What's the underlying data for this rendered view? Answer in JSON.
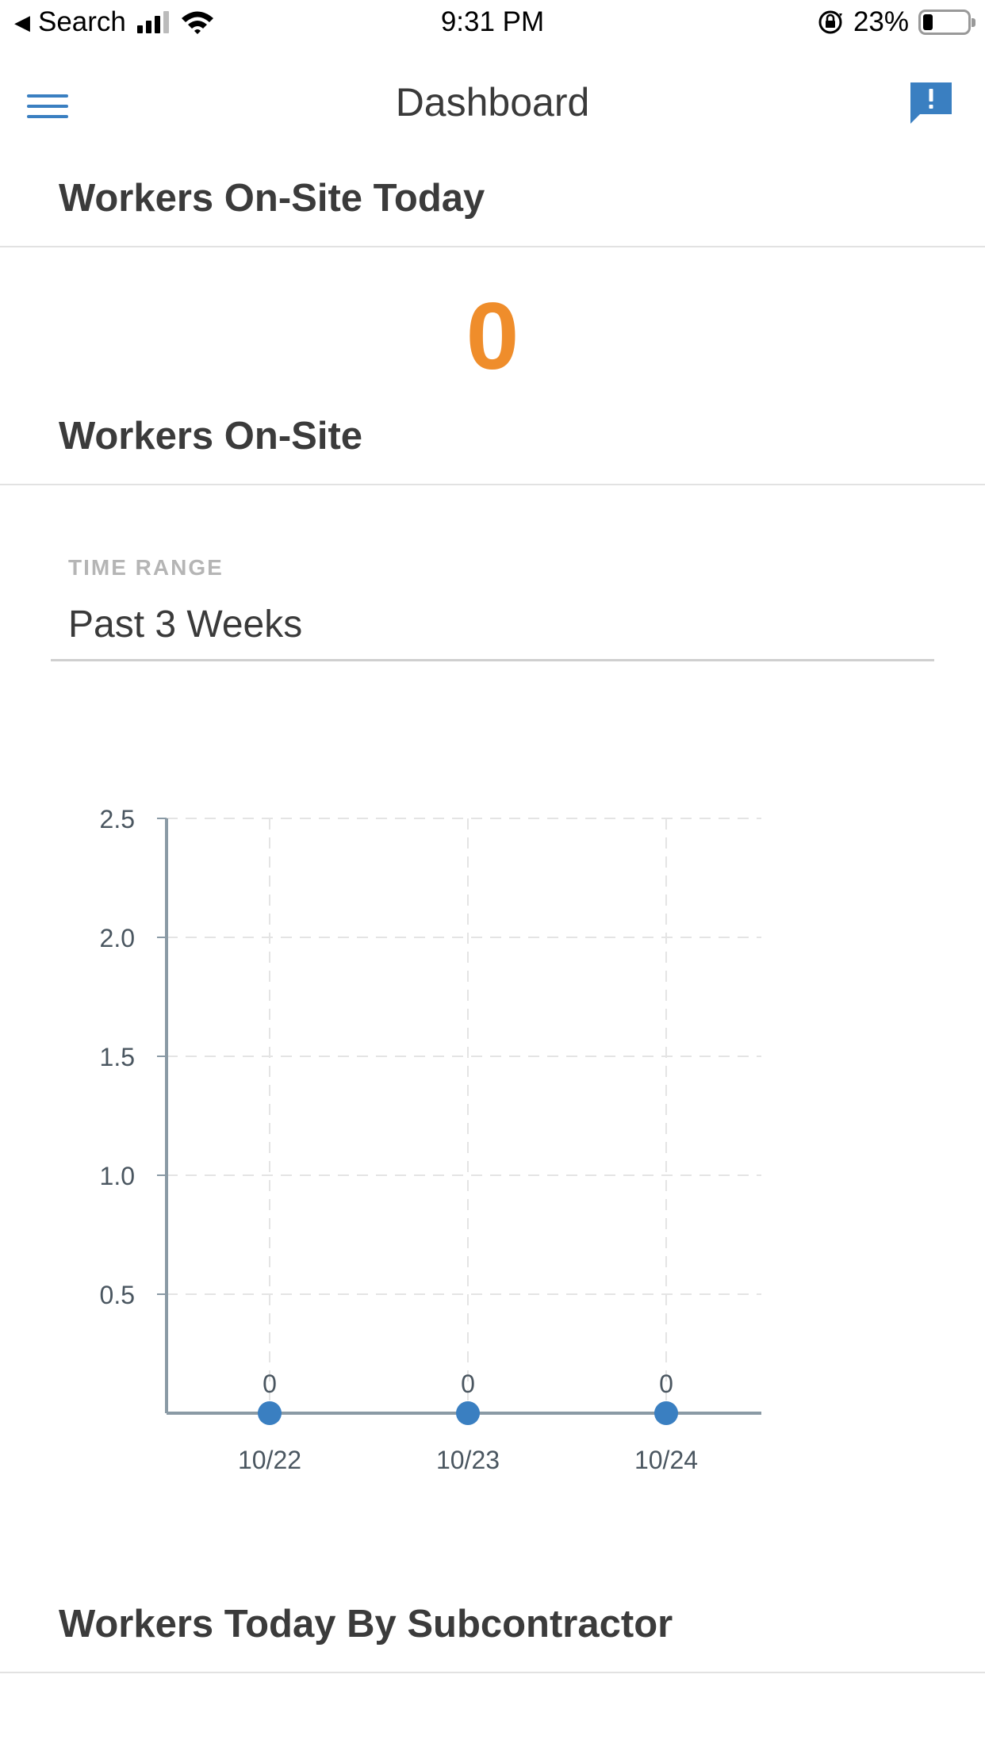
{
  "status_bar": {
    "back_label": "Search",
    "time": "9:31 PM",
    "battery_text": "23%",
    "battery_level": 0.23
  },
  "nav": {
    "title": "Dashboard",
    "menu_icon": "hamburger-menu-icon",
    "feedback_icon": "feedback-chat-icon",
    "accent_color": "#3a7fc1"
  },
  "workers_today": {
    "heading": "Workers On-Site Today",
    "count": "0",
    "count_color": "#ef8d2b"
  },
  "workers_onsite": {
    "heading": "Workers On-Site",
    "time_range_label": "TIME RANGE",
    "time_range_value": "Past 3 Weeks"
  },
  "chart_data": {
    "type": "scatter",
    "categories": [
      "10/22",
      "10/23",
      "10/24"
    ],
    "values": [
      0,
      0,
      0
    ],
    "data_labels": [
      "0",
      "0",
      "0"
    ],
    "y_ticks": [
      "0.5",
      "1.0",
      "1.5",
      "2.0",
      "2.5"
    ],
    "ylim": [
      0,
      2.5
    ],
    "grid": true,
    "point_color": "#3a7fc1"
  },
  "by_subcontractor": {
    "heading": "Workers Today By Subcontractor"
  }
}
